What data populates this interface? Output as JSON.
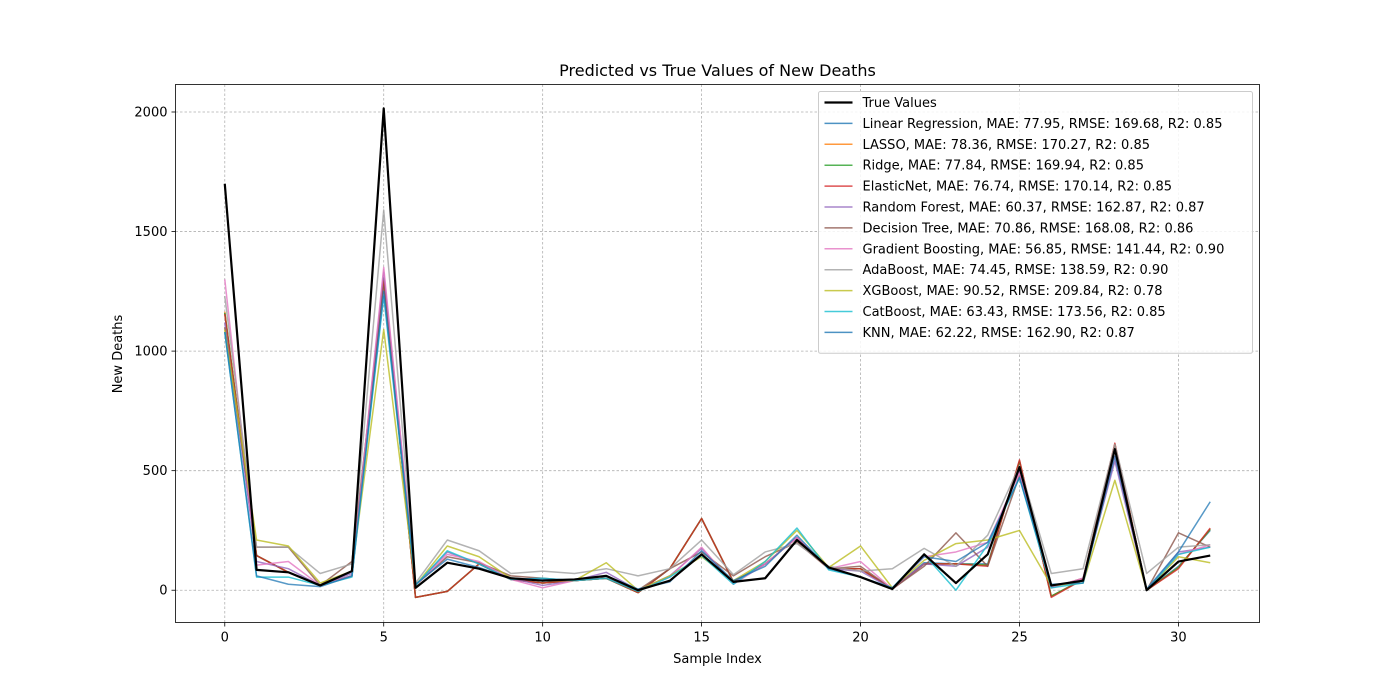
{
  "chart_data": {
    "type": "line",
    "title": "Predicted vs True Values of New Deaths",
    "xlabel": "Sample Index",
    "ylabel": "New Deaths",
    "xlim": [
      -1.55,
      32.55
    ],
    "ylim": [
      -135,
      2115
    ],
    "xticks": [
      0,
      5,
      10,
      15,
      20,
      25,
      30
    ],
    "yticks": [
      0,
      500,
      1000,
      1500,
      2000
    ],
    "grid": true,
    "legend_position": "upper right",
    "x": [
      0,
      1,
      2,
      3,
      4,
      5,
      6,
      7,
      8,
      9,
      10,
      11,
      12,
      13,
      14,
      15,
      16,
      17,
      18,
      19,
      20,
      21,
      22,
      23,
      24,
      25,
      26,
      27,
      28,
      29,
      30,
      31
    ],
    "series": [
      {
        "name": "True Values",
        "color": "#000000",
        "width": 2.2,
        "values": [
          1700,
          85,
          75,
          20,
          80,
          2015,
          10,
          115,
          90,
          50,
          40,
          45,
          60,
          0,
          40,
          150,
          35,
          50,
          210,
          95,
          55,
          5,
          150,
          30,
          150,
          515,
          20,
          40,
          590,
          0,
          120,
          145
        ]
      },
      {
        "name": "Linear Regression, MAE: 77.95, RMSE: 169.68, R2: 0.85",
        "color": "#1f77b4",
        "width": 1.5,
        "values": [
          1160,
          145,
          75,
          20,
          60,
          1300,
          -30,
          -5,
          110,
          45,
          30,
          40,
          50,
          -10,
          90,
          300,
          35,
          110,
          220,
          90,
          90,
          5,
          115,
          110,
          110,
          540,
          -25,
          45,
          610,
          0,
          100,
          250
        ]
      },
      {
        "name": "LASSO, MAE: 78.36, RMSE: 170.27, R2: 0.85",
        "color": "#ff7f0e",
        "width": 1.5,
        "values": [
          1165,
          145,
          75,
          20,
          60,
          1300,
          -30,
          -5,
          110,
          45,
          30,
          40,
          50,
          -10,
          90,
          300,
          35,
          110,
          220,
          90,
          90,
          5,
          110,
          110,
          105,
          540,
          -25,
          45,
          610,
          0,
          95,
          255
        ]
      },
      {
        "name": "Ridge, MAE: 77.84, RMSE: 169.94, R2: 0.85",
        "color": "#2ca02c",
        "width": 1.5,
        "values": [
          1160,
          145,
          75,
          20,
          60,
          1305,
          -30,
          -5,
          110,
          45,
          30,
          40,
          50,
          -10,
          90,
          300,
          35,
          110,
          220,
          90,
          90,
          5,
          110,
          110,
          105,
          540,
          -25,
          45,
          610,
          0,
          95,
          255
        ]
      },
      {
        "name": "ElasticNet, MAE: 76.74, RMSE: 170.14, R2: 0.85",
        "color": "#d62728",
        "width": 1.5,
        "values": [
          1155,
          145,
          75,
          20,
          60,
          1295,
          -30,
          -5,
          110,
          45,
          30,
          40,
          50,
          -10,
          90,
          300,
          35,
          110,
          220,
          90,
          90,
          5,
          110,
          110,
          100,
          545,
          -30,
          45,
          615,
          0,
          90,
          260
        ]
      },
      {
        "name": "Random Forest, MAE: 60.37, RMSE: 162.87, R2: 0.87",
        "color": "#9467bd",
        "width": 1.5,
        "values": [
          1120,
          120,
          90,
          20,
          70,
          1330,
          20,
          160,
          110,
          50,
          20,
          40,
          75,
          0,
          60,
          175,
          30,
          110,
          220,
          90,
          80,
          5,
          110,
          100,
          180,
          500,
          15,
          40,
          540,
          0,
          160,
          180
        ]
      },
      {
        "name": "Decision Tree, MAE: 70.86, RMSE: 168.08, R2: 0.86",
        "color": "#8c564b",
        "width": 1.5,
        "values": [
          1100,
          180,
          180,
          20,
          120,
          1270,
          20,
          140,
          115,
          60,
          50,
          40,
          50,
          0,
          90,
          160,
          60,
          140,
          200,
          90,
          100,
          5,
          100,
          240,
          100,
          480,
          10,
          50,
          600,
          0,
          240,
          180
        ]
      },
      {
        "name": "Gradient Boosting, MAE: 56.85, RMSE: 141.44, R2: 0.90",
        "color": "#e377c2",
        "width": 1.5,
        "values": [
          1300,
          105,
          120,
          20,
          60,
          1350,
          20,
          150,
          120,
          45,
          10,
          40,
          60,
          0,
          55,
          180,
          25,
          110,
          220,
          90,
          120,
          5,
          140,
          160,
          200,
          490,
          10,
          50,
          560,
          0,
          150,
          190
        ]
      },
      {
        "name": "AdaBoost, MAE: 74.45, RMSE: 138.59, R2: 0.90",
        "color": "#a0a0a0",
        "width": 1.5,
        "values": [
          1230,
          180,
          180,
          70,
          110,
          1590,
          30,
          210,
          165,
          70,
          80,
          70,
          90,
          60,
          90,
          210,
          65,
          160,
          195,
          100,
          80,
          90,
          175,
          100,
          230,
          520,
          70,
          90,
          610,
          70,
          180,
          190
        ]
      },
      {
        "name": "XGBoost, MAE: 90.52, RMSE: 209.84, R2: 0.78",
        "color": "#bcbd22",
        "width": 1.5,
        "values": [
          1090,
          210,
          185,
          30,
          80,
          1090,
          20,
          185,
          140,
          50,
          40,
          40,
          115,
          0,
          60,
          140,
          40,
          120,
          250,
          95,
          185,
          10,
          125,
          195,
          210,
          250,
          20,
          30,
          460,
          0,
          140,
          115
        ]
      },
      {
        "name": "CatBoost, MAE: 63.43, RMSE: 173.56, R2: 0.85",
        "color": "#17becf",
        "width": 1.5,
        "values": [
          1080,
          55,
          55,
          20,
          55,
          1230,
          20,
          165,
          110,
          45,
          50,
          40,
          50,
          -5,
          55,
          145,
          25,
          120,
          260,
          85,
          55,
          10,
          150,
          0,
          190,
          470,
          10,
          30,
          590,
          0,
          150,
          180
        ]
      },
      {
        "name": "KNN, MAE: 62.22, RMSE: 162.90, R2: 0.87",
        "color": "#1f77b4",
        "width": 1.5,
        "alpha": 0.75,
        "values": [
          1080,
          60,
          25,
          15,
          60,
          1250,
          25,
          130,
          95,
          50,
          45,
          45,
          60,
          5,
          35,
          165,
          40,
          100,
          230,
          90,
          55,
          10,
          140,
          120,
          200,
          470,
          25,
          30,
          560,
          5,
          160,
          370
        ]
      }
    ]
  }
}
